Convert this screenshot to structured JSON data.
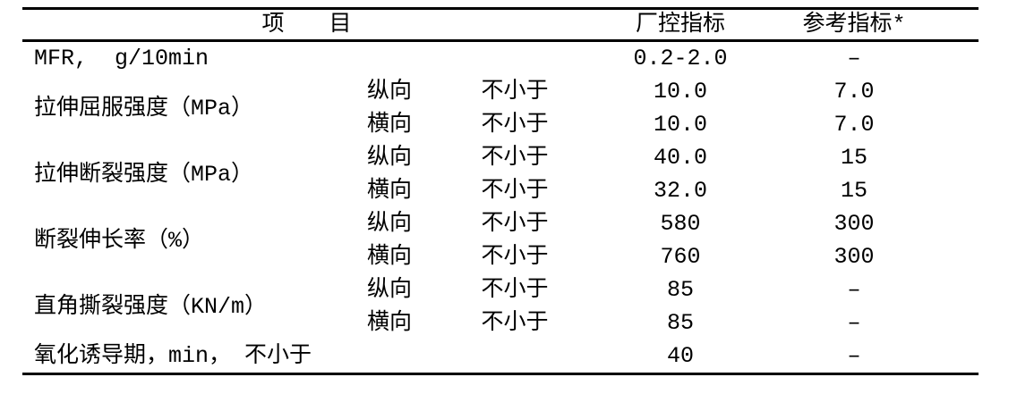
{
  "page": {
    "background": "#ffffff",
    "text_color": "#000000",
    "rule_color": "#000000"
  },
  "table": {
    "header": {
      "item_label": "项　　目",
      "factory_label": "厂控指标",
      "reference_label": "参考指标*"
    },
    "rows": [
      {
        "name": "MFR,  g/10min",
        "dir": "",
        "cond": "",
        "factory": "0.2-2.0",
        "reference": "–"
      },
      {
        "name": "拉伸屈服强度（MPa）",
        "dir": "纵向",
        "cond": "不小于",
        "factory": "10.0",
        "reference": "7.0"
      },
      {
        "name": "",
        "dir": "横向",
        "cond": "不小于",
        "factory": "10.0",
        "reference": "7.0"
      },
      {
        "name": "拉伸断裂强度（MPa）",
        "dir": "纵向",
        "cond": "不小于",
        "factory": "40.0",
        "reference": "15"
      },
      {
        "name": "",
        "dir": "横向",
        "cond": "不小于",
        "factory": "32.0",
        "reference": "15"
      },
      {
        "name": "断裂伸长率（%）",
        "dir": "纵向",
        "cond": "不小于",
        "factory": "580",
        "reference": "300"
      },
      {
        "name": "",
        "dir": "横向",
        "cond": "不小于",
        "factory": "760",
        "reference": "300"
      },
      {
        "name": "直角撕裂强度（KN/m）",
        "dir": "纵向",
        "cond": "不小于",
        "factory": "85",
        "reference": "–"
      },
      {
        "name": "",
        "dir": "横向",
        "cond": "不小于",
        "factory": "85",
        "reference": "–"
      },
      {
        "name": "氧化诱导期，min， 不小于",
        "dir": "",
        "cond": "",
        "factory": "40",
        "reference": "–"
      }
    ]
  }
}
